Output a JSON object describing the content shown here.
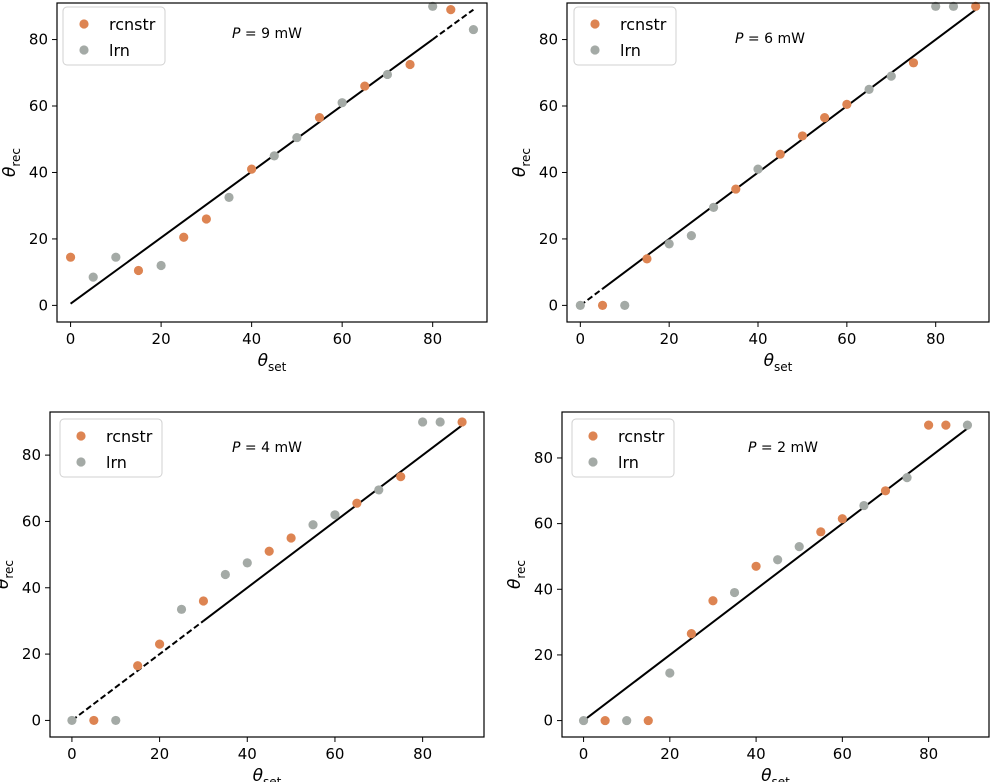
{
  "colors": {
    "rcnstr": "#dd8452",
    "lrn": "#a4aaa6",
    "line": "#000000"
  },
  "chart_data": [
    {
      "type": "scatter",
      "id": "panel-9mw",
      "power_label": "P = 9 mW",
      "power_var": "P",
      "power_rest": " = 9 mW",
      "xlabel_main": "θ",
      "xlabel_sub": "set",
      "ylabel_main": "θ",
      "ylabel_sub": "rec",
      "xlim": [
        -3,
        92
      ],
      "ylim": [
        -5,
        91
      ],
      "xticks": [
        0,
        20,
        40,
        60,
        80
      ],
      "yticks": [
        0,
        20,
        40,
        60,
        80
      ],
      "legend": [
        "rcnstr",
        "lrn"
      ],
      "series": [
        {
          "name": "rcnstr",
          "x": [
            0,
            15,
            25,
            30,
            40,
            55,
            65,
            75,
            84
          ],
          "y": [
            14.5,
            10.5,
            20.5,
            26,
            41,
            56.5,
            66,
            72.5,
            89
          ]
        },
        {
          "name": "lrn",
          "x": [
            5,
            10,
            20,
            35,
            45,
            50,
            60,
            70,
            80,
            89
          ],
          "y": [
            8.5,
            14.5,
            12,
            32.5,
            45,
            50.5,
            61,
            69.5,
            90,
            83
          ]
        }
      ],
      "fit": {
        "x0": 0,
        "y0": 0.5,
        "x1": 89,
        "y1": 89,
        "dash_from": 0,
        "dash_to": 0,
        "dash_end_from": 80
      }
    },
    {
      "type": "scatter",
      "id": "panel-6mw",
      "power_label": "P = 6 mW",
      "power_var": "P",
      "power_rest": " = 6 mW",
      "xlabel_main": "θ",
      "xlabel_sub": "set",
      "ylabel_main": "θ",
      "ylabel_sub": "rec",
      "xlim": [
        -3,
        92
      ],
      "ylim": [
        -5,
        91
      ],
      "xticks": [
        0,
        20,
        40,
        60,
        80
      ],
      "yticks": [
        0,
        20,
        40,
        60,
        80
      ],
      "legend": [
        "rcnstr",
        "lrn"
      ],
      "series": [
        {
          "name": "rcnstr",
          "x": [
            5,
            15,
            35,
            45,
            50,
            55,
            60,
            75,
            89
          ],
          "y": [
            0,
            14,
            35,
            45.5,
            51,
            56.5,
            60.5,
            73,
            90
          ]
        },
        {
          "name": "lrn",
          "x": [
            0,
            10,
            20,
            25,
            30,
            40,
            65,
            70,
            80,
            84
          ],
          "y": [
            0,
            0,
            18.5,
            21,
            29.5,
            41,
            65,
            69,
            90,
            90
          ]
        }
      ],
      "fit": {
        "x0": 0,
        "y0": 0,
        "x1": 89,
        "y1": 89,
        "dash_from": 0,
        "dash_to": 5
      }
    },
    {
      "type": "scatter",
      "id": "panel-4mw",
      "power_label": "P = 4 mW",
      "power_var": "P",
      "power_rest": " = 4 mW",
      "xlabel_main": "θ",
      "xlabel_sub": "set",
      "ylabel_main": "θ",
      "ylabel_sub": "rec",
      "xlim": [
        -5,
        94
      ],
      "ylim": [
        -5,
        93
      ],
      "xticks": [
        0,
        20,
        40,
        60,
        80
      ],
      "yticks": [
        0,
        20,
        40,
        60,
        80
      ],
      "legend": [
        "rcnstr",
        "lrn"
      ],
      "series": [
        {
          "name": "rcnstr",
          "x": [
            5,
            15,
            20,
            30,
            45,
            50,
            65,
            75,
            89
          ],
          "y": [
            0,
            16.5,
            23,
            36,
            51,
            55,
            65.5,
            73.5,
            90
          ]
        },
        {
          "name": "lrn",
          "x": [
            0,
            10,
            25,
            35,
            40,
            55,
            60,
            70,
            80,
            84
          ],
          "y": [
            0,
            0,
            33.5,
            44,
            47.5,
            59,
            62,
            69.5,
            90,
            90
          ]
        }
      ],
      "fit": {
        "x0": 0,
        "y0": 0,
        "x1": 89,
        "y1": 89,
        "dash_from": 0,
        "dash_to": 30
      }
    },
    {
      "type": "scatter",
      "id": "panel-2mw",
      "power_label": "P = 2 mW",
      "power_var": "P",
      "power_rest": " = 2 mW",
      "xlabel_main": "θ",
      "xlabel_sub": "set",
      "ylabel_main": "θ",
      "ylabel_sub": "rec",
      "xlim": [
        -5,
        94
      ],
      "ylim": [
        -5,
        94
      ],
      "xticks": [
        0,
        20,
        40,
        60,
        80
      ],
      "yticks": [
        0,
        20,
        40,
        60,
        80
      ],
      "legend": [
        "rcnstr",
        "lrn"
      ],
      "series": [
        {
          "name": "rcnstr",
          "x": [
            5,
            15,
            25,
            30,
            40,
            55,
            60,
            70,
            80,
            84
          ],
          "y": [
            0,
            0,
            26.5,
            36.5,
            47,
            57.5,
            61.5,
            70,
            90,
            90
          ]
        },
        {
          "name": "lrn",
          "x": [
            0,
            10,
            20,
            35,
            45,
            50,
            65,
            75,
            89
          ],
          "y": [
            0,
            0,
            14.5,
            39,
            49,
            53,
            65.5,
            74,
            90
          ]
        }
      ],
      "fit": {
        "x0": 0,
        "y0": 0,
        "x1": 89,
        "y1": 89,
        "dash_from": 0,
        "dash_to": 0
      }
    }
  ]
}
